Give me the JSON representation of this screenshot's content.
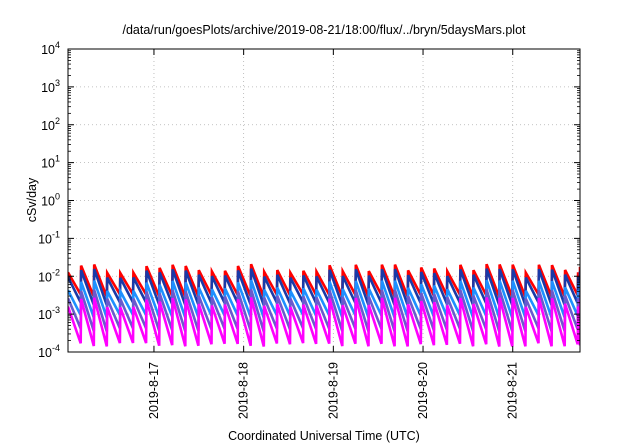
{
  "chart_data": {
    "type": "line",
    "title": "/data/run/goesPlots/archive/2019-08-21/18:00/flux/../bryn/5daysMars.plot",
    "xlabel": "Coordinated Universal Time (UTC)",
    "ylabel": "cSv/day",
    "yscale": "log",
    "ylim": [
      0.0001,
      10000
    ],
    "y_ticks": [
      {
        "base": "10",
        "exp": "-4"
      },
      {
        "base": "10",
        "exp": "-3"
      },
      {
        "base": "10",
        "exp": "-2"
      },
      {
        "base": "10",
        "exp": "-1"
      },
      {
        "base": "10",
        "exp": "0"
      },
      {
        "base": "10",
        "exp": "1"
      },
      {
        "base": "10",
        "exp": "2"
      },
      {
        "base": "10",
        "exp": "3"
      },
      {
        "base": "10",
        "exp": "4"
      }
    ],
    "xlim": [
      "2019-08-16 01:00",
      "2019-08-21 18:00"
    ],
    "x_ticks": [
      "2019-8-17",
      "2019-8-18",
      "2019-8-19",
      "2019-8-20",
      "2019-8-21"
    ],
    "grid": true,
    "legend": "none",
    "sawtooth_period_hours": 3.5,
    "series": [
      {
        "color": "#ff0000",
        "peak_range": [
          0.012,
          0.021
        ],
        "trough_range": [
          0.0025,
          0.0045
        ]
      },
      {
        "color": "#1a3aa8",
        "peak_range": [
          0.009,
          0.016
        ],
        "trough_range": [
          0.0015,
          0.0028
        ]
      },
      {
        "color": "#1e90ff",
        "peak_range": [
          0.004,
          0.008
        ],
        "trough_range": [
          0.0007,
          0.0013
        ]
      },
      {
        "color": "#6a5acd",
        "peak_range": [
          0.0025,
          0.0045
        ],
        "trough_range": [
          0.0003,
          0.0006
        ]
      },
      {
        "color": "#ff00ff",
        "peak_range": [
          0.0015,
          0.0028
        ],
        "trough_range": [
          0.00012,
          0.00025
        ]
      }
    ]
  }
}
